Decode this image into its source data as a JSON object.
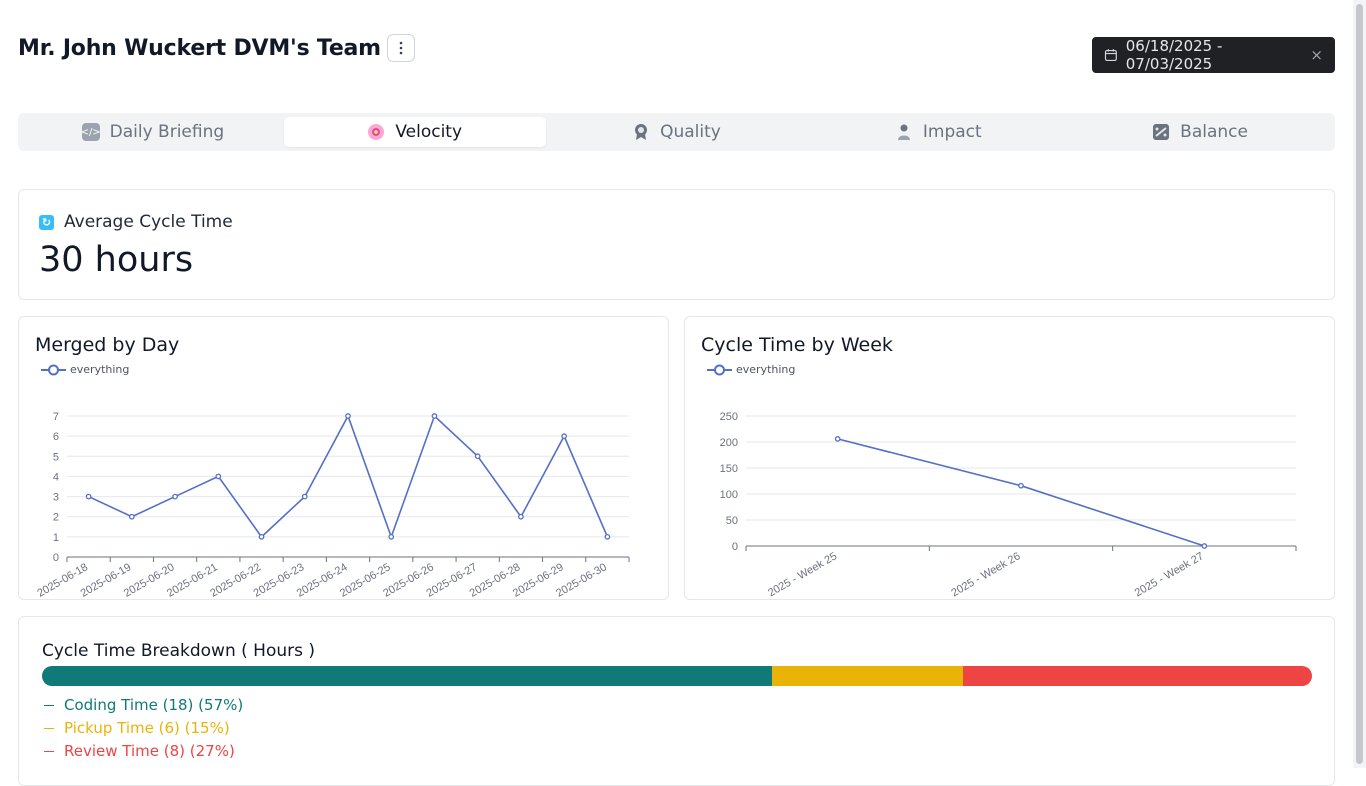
{
  "header": {
    "team_title": "Mr. John Wuckert DVM's Team",
    "menu_icon": "kebab-menu-icon",
    "date_range": "06/18/2025 - 07/03/2025",
    "close_symbol": "×"
  },
  "tabs": [
    {
      "label": "Daily Briefing",
      "icon": "code-icon",
      "active": false
    },
    {
      "label": "Velocity",
      "icon": "flower-icon",
      "active": true
    },
    {
      "label": "Quality",
      "icon": "award-icon",
      "active": false
    },
    {
      "label": "Impact",
      "icon": "person-icon",
      "active": false
    },
    {
      "label": "Balance",
      "icon": "balance-icon",
      "active": false
    }
  ],
  "average_cycle_time": {
    "label": "Average Cycle Time",
    "value": "30 hours"
  },
  "charts": {
    "merged_by_day": {
      "title": "Merged by Day",
      "legend": "everything"
    },
    "cycle_time_by_week": {
      "title": "Cycle Time by Week",
      "legend": "everything"
    }
  },
  "chart_data": [
    {
      "type": "line",
      "title": "Merged by Day",
      "categories": [
        "2025-06-18",
        "2025-06-19",
        "2025-06-20",
        "2025-06-21",
        "2025-06-22",
        "2025-06-23",
        "2025-06-24",
        "2025-06-25",
        "2025-06-26",
        "2025-06-27",
        "2025-06-28",
        "2025-06-29",
        "2025-06-30"
      ],
      "series": [
        {
          "name": "everything",
          "values": [
            3,
            2,
            3,
            4,
            1,
            3,
            7,
            1,
            7,
            5,
            2,
            6,
            1
          ]
        }
      ],
      "yticks": [
        0,
        1,
        2,
        3,
        4,
        5,
        6,
        7
      ],
      "ylim": [
        0,
        7
      ],
      "color": "#5470c6"
    },
    {
      "type": "line",
      "title": "Cycle Time by Week",
      "categories": [
        "2025 - Week 25",
        "2025 - Week 26",
        "2025 - Week 27"
      ],
      "series": [
        {
          "name": "everything",
          "values": [
            206,
            116,
            0
          ]
        }
      ],
      "yticks": [
        0,
        50,
        100,
        150,
        200,
        250
      ],
      "ylim": [
        0,
        250
      ],
      "color": "#5470c6"
    }
  ],
  "breakdown": {
    "title": "Cycle Time Breakdown ( Hours )",
    "segments": [
      {
        "label": "Coding Time (18) (57%)",
        "fraction": 0.575,
        "color": "#0f7a78"
      },
      {
        "label": "Pickup Time (6) (15%)",
        "fraction": 0.15,
        "color": "#eab308"
      },
      {
        "label": "Review Time (8) (27%)",
        "fraction": 0.275,
        "color": "#ef4444"
      }
    ]
  }
}
